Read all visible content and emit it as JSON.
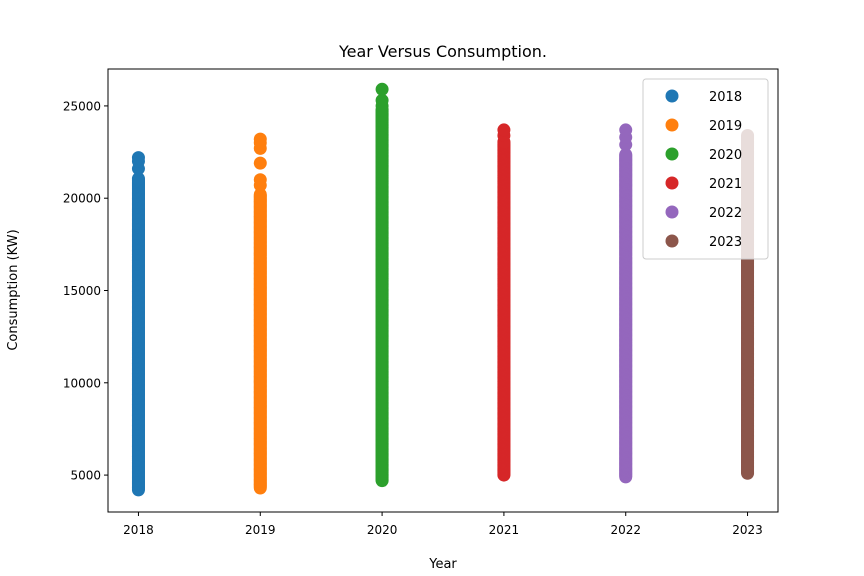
{
  "chart_data": {
    "type": "scatter",
    "title": "Year Versus Consumption.",
    "xlabel": "Year",
    "ylabel": "Consumption (KW)",
    "xlim": [
      2017.75,
      2023.25
    ],
    "ylim": [
      3000,
      27000
    ],
    "xticks": [
      2018,
      2019,
      2020,
      2021,
      2022,
      2023
    ],
    "yticks": [
      5000,
      10000,
      15000,
      20000,
      25000
    ],
    "grid": false,
    "legend_position": "top-right",
    "series": [
      {
        "name": "2018",
        "color": "#1f77b4",
        "x": 2018,
        "min": 4200,
        "max": 21100,
        "outliers": [
          21600,
          22000,
          22200
        ]
      },
      {
        "name": "2019",
        "color": "#ff7f0e",
        "x": 2019,
        "min": 4300,
        "max": 20200,
        "outliers": [
          20700,
          21000,
          21900,
          22700,
          23000,
          23200
        ]
      },
      {
        "name": "2020",
        "color": "#2ca02c",
        "x": 2020,
        "min": 4700,
        "max": 24800,
        "outliers": [
          25000,
          25300,
          25900
        ]
      },
      {
        "name": "2021",
        "color": "#d62728",
        "x": 2021,
        "min": 5000,
        "max": 23100,
        "outliers": [
          23400,
          23700
        ]
      },
      {
        "name": "2022",
        "color": "#9467bd",
        "x": 2022,
        "min": 4900,
        "max": 22400,
        "outliers": [
          22900,
          23300,
          23700
        ]
      },
      {
        "name": "2023",
        "color": "#8c564b",
        "x": 2023,
        "min": 5100,
        "max": 23400,
        "outliers": []
      }
    ]
  }
}
